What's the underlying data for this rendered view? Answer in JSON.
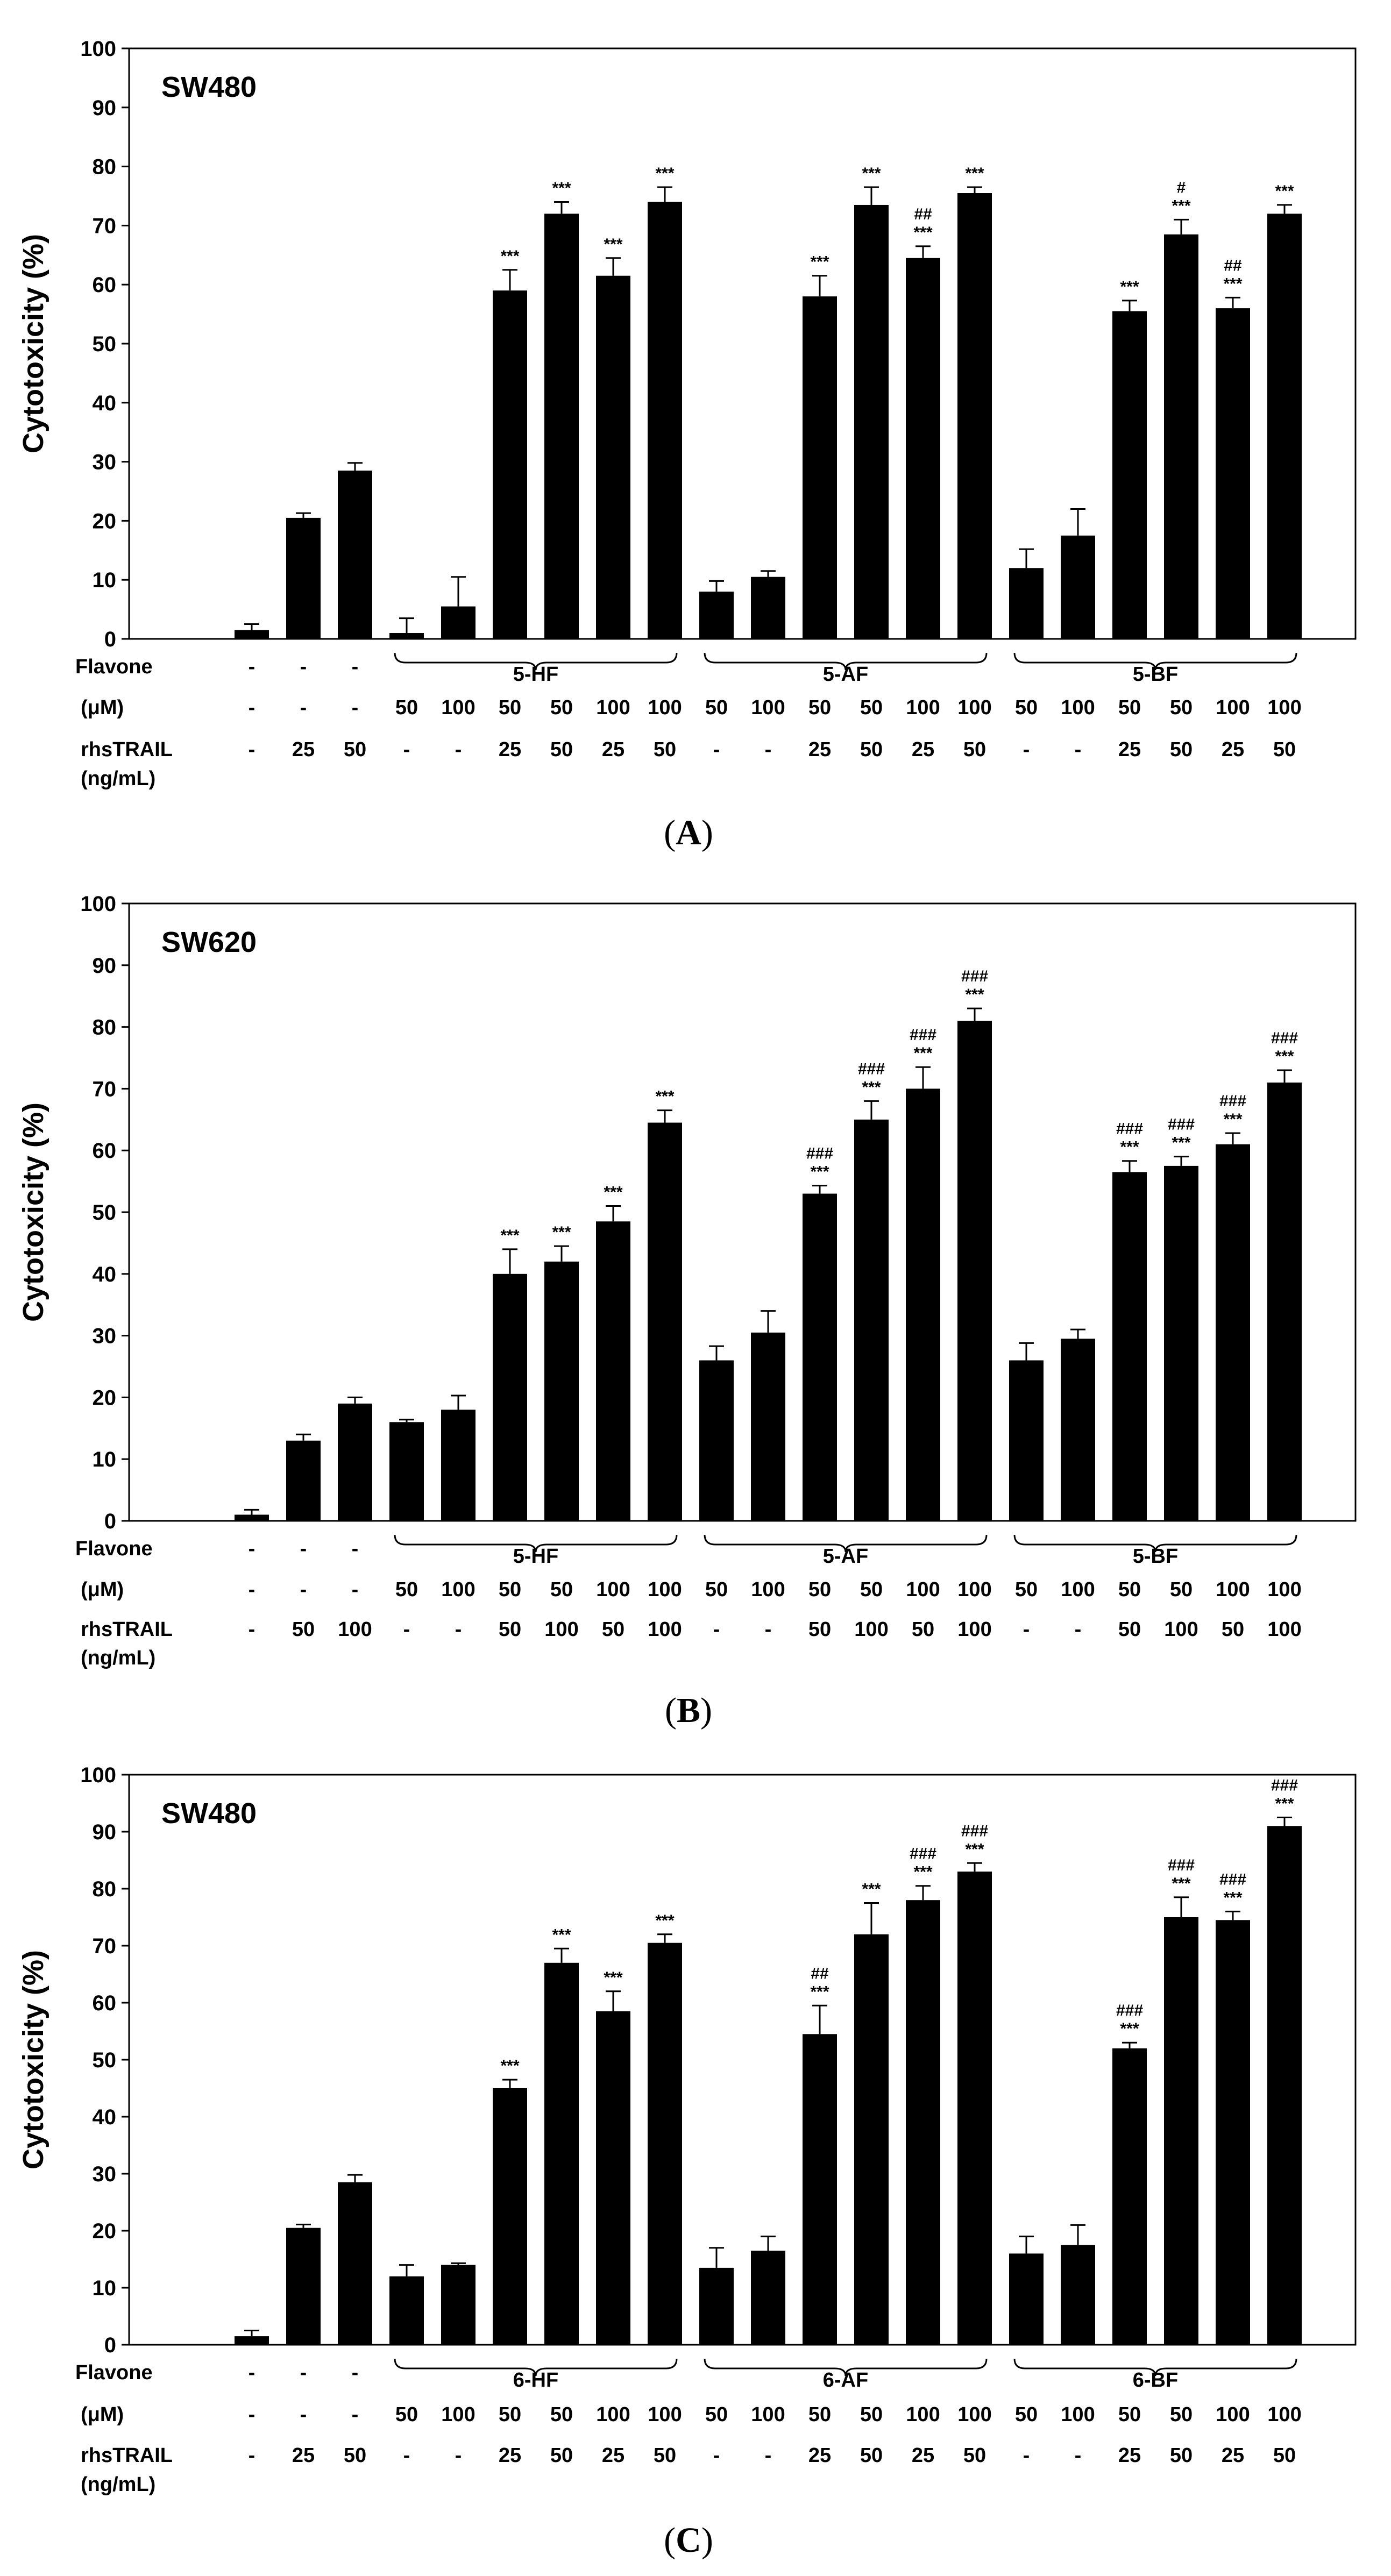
{
  "figure": {
    "row_labels": {
      "flavone": "Flavone",
      "um": "(μM)",
      "trail_line1": "rhsTRAIL",
      "trail_line2": "(ng/mL)"
    }
  },
  "chart_data": [
    {
      "type": "bar",
      "panel_label": "A",
      "title": "SW480",
      "ylabel": "Cytotoxicity (%)",
      "ylim": [
        0,
        100
      ],
      "yticks": [
        "0",
        "10",
        "20",
        "30",
        "40",
        "50",
        "60",
        "70",
        "80",
        "90",
        "100"
      ],
      "values": [
        1.5,
        20.5,
        28.5,
        1,
        5.5,
        59,
        72,
        61.5,
        74,
        8,
        10.5,
        58,
        73.5,
        64.5,
        75.5,
        12,
        17.5,
        55.5,
        68.5,
        56,
        72
      ],
      "errors": [
        1,
        0.8,
        1.3,
        2.5,
        5,
        3.5,
        2,
        3,
        2.5,
        1.8,
        1,
        3.5,
        3,
        2,
        1,
        3.2,
        4.5,
        1.8,
        2.5,
        1.8,
        1.5
      ],
      "annotations": [
        "",
        "",
        "",
        "",
        "",
        "***",
        "***",
        "***",
        "***",
        "",
        "",
        "***",
        "***",
        "***|##",
        "***",
        "",
        "",
        "***",
        "***|#",
        "***|##",
        "***"
      ],
      "flavone": [
        "-",
        "-",
        "-",
        "",
        "",
        "",
        "",
        "",
        "",
        "",
        "",
        "",
        "",
        "",
        "",
        "",
        "",
        "",
        "",
        "",
        ""
      ],
      "groups": [
        {
          "label": "5-HF",
          "start": 3,
          "end": 8
        },
        {
          "label": "5-AF",
          "start": 9,
          "end": 14
        },
        {
          "label": "5-BF",
          "start": 15,
          "end": 20
        }
      ],
      "um": [
        "-",
        "-",
        "-",
        "50",
        "100",
        "50",
        "50",
        "100",
        "100",
        "50",
        "100",
        "50",
        "50",
        "100",
        "100",
        "50",
        "100",
        "50",
        "50",
        "100",
        "100"
      ],
      "rhsTRAIL": [
        "-",
        "25",
        "50",
        "-",
        "-",
        "25",
        "50",
        "25",
        "50",
        "-",
        "-",
        "25",
        "50",
        "25",
        "50",
        "-",
        "-",
        "25",
        "50",
        "25",
        "50"
      ]
    },
    {
      "type": "bar",
      "panel_label": "B",
      "title": "SW620",
      "ylabel": "Cytotoxicity (%)",
      "ylim": [
        0,
        100
      ],
      "yticks": [
        "0",
        "10",
        "20",
        "30",
        "40",
        "50",
        "60",
        "70",
        "80",
        "90",
        "100"
      ],
      "values": [
        1,
        13,
        19,
        16,
        18,
        40,
        42,
        48.5,
        64.5,
        26,
        30.5,
        53,
        65,
        70,
        81,
        26,
        29.5,
        56.5,
        57.5,
        61,
        71
      ],
      "errors": [
        0.8,
        1,
        1,
        0.4,
        2.3,
        4,
        2.5,
        2.5,
        2,
        2.3,
        3.5,
        1.3,
        3,
        3.5,
        2,
        2.8,
        1.5,
        1.8,
        1.5,
        1.8,
        2
      ],
      "annotations": [
        "",
        "",
        "",
        "",
        "",
        "***",
        "***",
        "***",
        "***",
        "",
        "",
        "***|###",
        "***|###",
        "***|###",
        "***|###",
        "",
        "",
        "***|###",
        "***|###",
        "***|###",
        "***|###"
      ],
      "flavone": [
        "-",
        "-",
        "-",
        "",
        "",
        "",
        "",
        "",
        "",
        "",
        "",
        "",
        "",
        "",
        "",
        "",
        "",
        "",
        "",
        "",
        ""
      ],
      "groups": [
        {
          "label": "5-HF",
          "start": 3,
          "end": 8
        },
        {
          "label": "5-AF",
          "start": 9,
          "end": 14
        },
        {
          "label": "5-BF",
          "start": 15,
          "end": 20
        }
      ],
      "um": [
        "-",
        "-",
        "-",
        "50",
        "100",
        "50",
        "50",
        "100",
        "100",
        "50",
        "100",
        "50",
        "50",
        "100",
        "100",
        "50",
        "100",
        "50",
        "50",
        "100",
        "100"
      ],
      "rhsTRAIL": [
        "-",
        "50",
        "100",
        "-",
        "-",
        "50",
        "100",
        "50",
        "100",
        "-",
        "-",
        "50",
        "100",
        "50",
        "100",
        "-",
        "-",
        "50",
        "100",
        "50",
        "100"
      ]
    },
    {
      "type": "bar",
      "panel_label": "C",
      "title": "SW480",
      "ylabel": "Cytotoxicity (%)",
      "ylim": [
        0,
        100
      ],
      "yticks": [
        "0",
        "10",
        "20",
        "30",
        "40",
        "50",
        "60",
        "70",
        "80",
        "90",
        "100"
      ],
      "values": [
        1.5,
        20.5,
        28.5,
        12,
        14,
        45,
        67,
        58.5,
        70.5,
        13.5,
        16.5,
        54.5,
        72,
        78,
        83,
        16,
        17.5,
        52,
        75,
        74.5,
        91
      ],
      "errors": [
        1,
        0.6,
        1.3,
        2,
        0.3,
        1.5,
        2.5,
        3.5,
        1.5,
        3.5,
        2.5,
        5,
        5.5,
        2.5,
        1.5,
        3,
        3.5,
        1,
        3.5,
        1.5,
        1.5
      ],
      "annotations": [
        "",
        "",
        "",
        "",
        "",
        "***",
        "***",
        "***",
        "***",
        "",
        "",
        "***|##",
        "***",
        "***|###",
        "***|###",
        "",
        "",
        "***|###",
        "***|###",
        "***|###",
        "***|###"
      ],
      "flavone": [
        "-",
        "-",
        "-",
        "",
        "",
        "",
        "",
        "",
        "",
        "",
        "",
        "",
        "",
        "",
        "",
        "",
        "",
        "",
        "",
        "",
        ""
      ],
      "groups": [
        {
          "label": "6-HF",
          "start": 3,
          "end": 8
        },
        {
          "label": "6-AF",
          "start": 9,
          "end": 14
        },
        {
          "label": "6-BF",
          "start": 15,
          "end": 20
        }
      ],
      "um": [
        "-",
        "-",
        "-",
        "50",
        "100",
        "50",
        "50",
        "100",
        "100",
        "50",
        "100",
        "50",
        "50",
        "100",
        "100",
        "50",
        "100",
        "50",
        "50",
        "100",
        "100"
      ],
      "rhsTRAIL": [
        "-",
        "25",
        "50",
        "-",
        "-",
        "25",
        "50",
        "25",
        "50",
        "-",
        "-",
        "25",
        "50",
        "25",
        "50",
        "-",
        "-",
        "25",
        "50",
        "25",
        "50"
      ]
    }
  ]
}
